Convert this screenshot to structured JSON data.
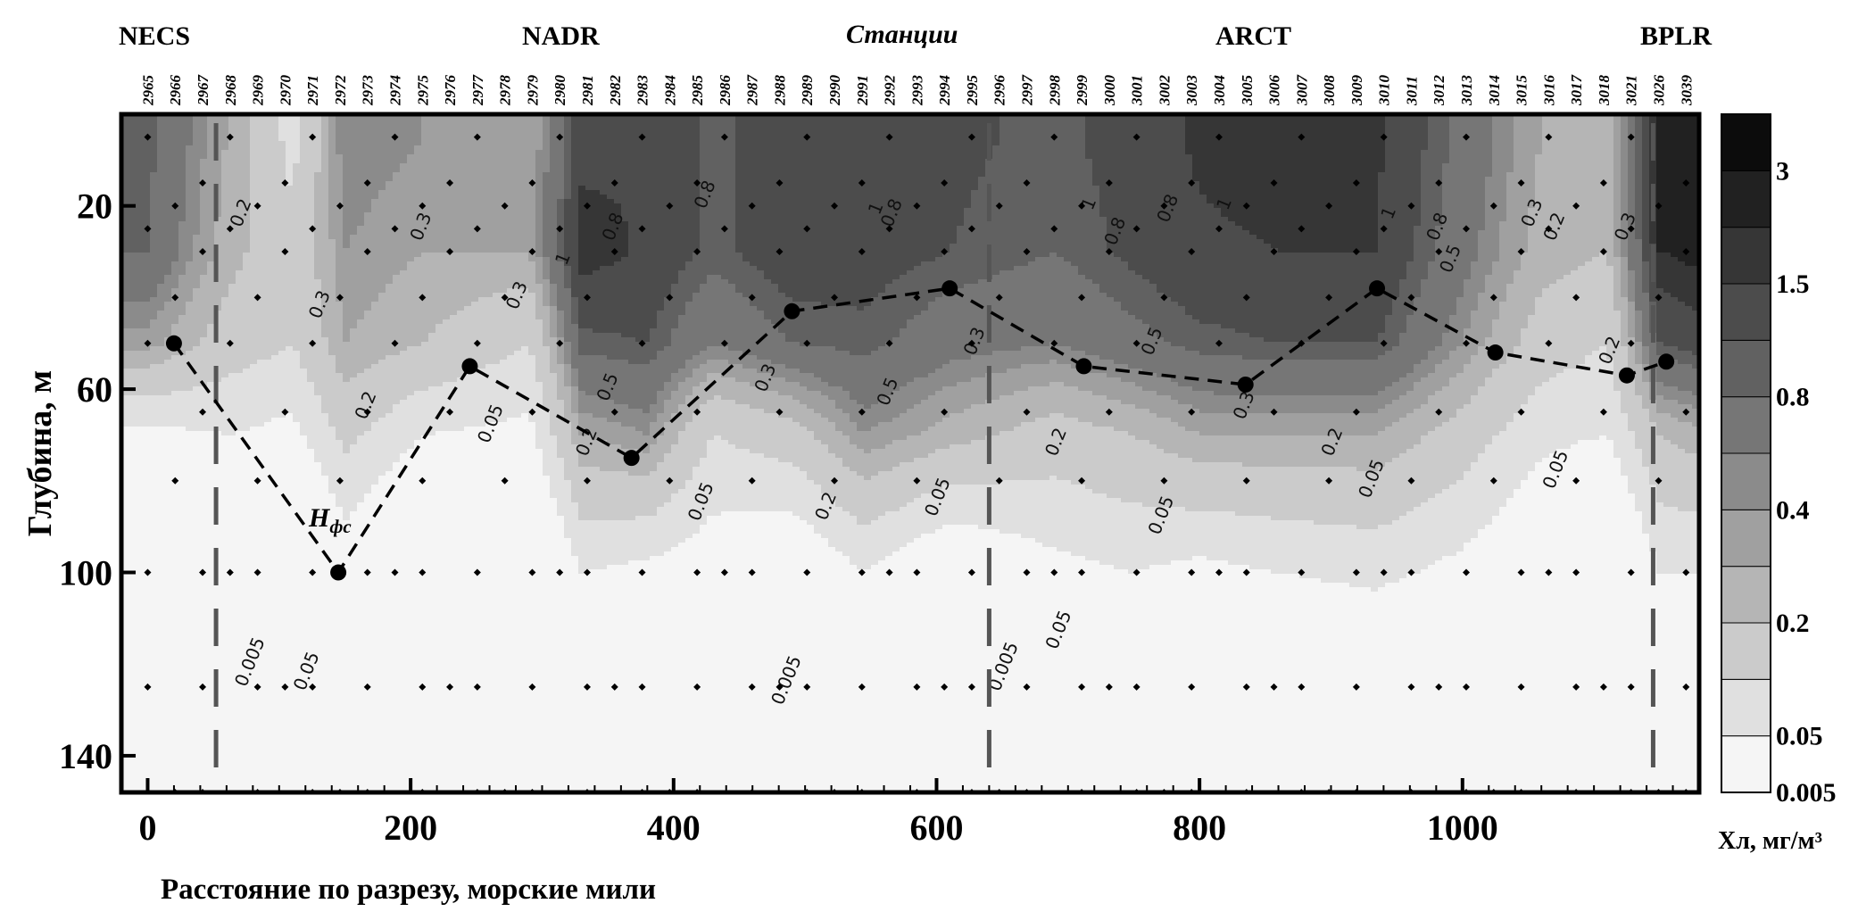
{
  "chart_data": {
    "type": "contour",
    "ylabel": "Глубина, м",
    "xlabel": "Расстояние по разрезу, морские мили",
    "colorbar_label": "Хл, мг/м³",
    "top_axis_label": "Станции",
    "x_ticks": [
      0,
      200,
      400,
      600,
      800,
      1000
    ],
    "y_ticks": [
      20,
      60,
      100,
      140
    ],
    "xlim": [
      -20,
      1180
    ],
    "ylim": [
      0,
      148
    ],
    "regions": [
      {
        "name": "NECS",
        "x": 0
      },
      {
        "name": "NADR",
        "x": 325
      },
      {
        "name": "ARCT",
        "x": 855
      },
      {
        "name": "BPLR",
        "x": 1150
      }
    ],
    "boundaries_x": [
      52,
      640,
      1145
    ],
    "stations": [
      "2965",
      "2966",
      "2967",
      "2968",
      "2969",
      "2970",
      "2971",
      "2972",
      "2973",
      "2974",
      "2975",
      "2976",
      "2977",
      "2978",
      "2979",
      "2980",
      "2981",
      "2982",
      "2983",
      "2984",
      "2985",
      "2986",
      "2987",
      "2988",
      "2989",
      "2990",
      "2991",
      "2992",
      "2993",
      "2994",
      "2995",
      "2996",
      "2997",
      "2998",
      "2999",
      "3000",
      "3001",
      "3002",
      "3003",
      "3004",
      "3005",
      "3006",
      "3007",
      "3008",
      "3009",
      "3010",
      "3011",
      "3012",
      "3013",
      "3014",
      "3015",
      "3016",
      "3017",
      "3018",
      "3021",
      "3026",
      "3039"
    ],
    "colorbar_levels": [
      0.005,
      0.05,
      0.1,
      0.2,
      0.3,
      0.4,
      0.5,
      0.8,
      1,
      1.5,
      2,
      3,
      4
    ],
    "colorbar_tick_labels": [
      {
        "value": 0.005,
        "label": "0.005"
      },
      {
        "value": 0.05,
        "label": "0.05"
      },
      {
        "value": 0.2,
        "label": "0.2"
      },
      {
        "value": 0.4,
        "label": "0.4"
      },
      {
        "value": 0.8,
        "label": "0.8"
      },
      {
        "value": 1.5,
        "label": "1.5"
      },
      {
        "value": 3,
        "label": "3"
      }
    ],
    "photic_depth_label": "Hфс",
    "photic_depth_points": [
      {
        "x": 20,
        "depth": 50
      },
      {
        "x": 145,
        "depth": 100
      },
      {
        "x": 245,
        "depth": 55
      },
      {
        "x": 368,
        "depth": 75
      },
      {
        "x": 490,
        "depth": 43
      },
      {
        "x": 610,
        "depth": 38
      },
      {
        "x": 712,
        "depth": 55
      },
      {
        "x": 835,
        "depth": 59
      },
      {
        "x": 935,
        "depth": 38
      },
      {
        "x": 1025,
        "depth": 52
      },
      {
        "x": 1125,
        "depth": 57
      },
      {
        "x": 1155,
        "depth": 54
      }
    ],
    "chlorophyll_profiles": [
      {
        "x": 0,
        "levels": [
          0.9,
          0.8,
          0.35,
          0.04,
          0.01,
          0.006
        ]
      },
      {
        "x": 60,
        "levels": [
          0.3,
          0.25,
          0.15,
          0.05,
          0.01,
          0.005
        ]
      },
      {
        "x": 110,
        "levels": [
          0.08,
          0.12,
          0.1,
          0.04,
          0.008,
          0.005
        ]
      },
      {
        "x": 150,
        "levels": [
          0.5,
          0.4,
          0.3,
          0.12,
          0.03,
          0.005
        ]
      },
      {
        "x": 210,
        "levels": [
          0.4,
          0.3,
          0.2,
          0.05,
          0.01,
          0.006
        ]
      },
      {
        "x": 290,
        "levels": [
          0.3,
          0.3,
          0.1,
          0.04,
          0.01,
          0.005
        ]
      },
      {
        "x": 330,
        "levels": [
          1.3,
          1.8,
          0.9,
          0.3,
          0.05,
          0.006
        ]
      },
      {
        "x": 380,
        "levels": [
          1.5,
          1.4,
          1.0,
          0.4,
          0.04,
          0.006
        ]
      },
      {
        "x": 430,
        "levels": [
          0.9,
          0.9,
          0.5,
          0.1,
          0.03,
          0.005
        ]
      },
      {
        "x": 490,
        "levels": [
          1.4,
          1.3,
          0.8,
          0.15,
          0.02,
          0.003
        ]
      },
      {
        "x": 545,
        "levels": [
          1.5,
          1.2,
          0.9,
          0.4,
          0.05,
          0.005
        ]
      },
      {
        "x": 610,
        "levels": [
          1.1,
          1.0,
          0.6,
          0.25,
          0.02,
          0.003
        ]
      },
      {
        "x": 690,
        "levels": [
          0.9,
          0.8,
          0.5,
          0.15,
          0.04,
          0.005
        ]
      },
      {
        "x": 750,
        "levels": [
          1.2,
          1.1,
          0.7,
          0.2,
          0.05,
          0.006
        ]
      },
      {
        "x": 800,
        "levels": [
          1.6,
          1.4,
          0.9,
          0.3,
          0.04,
          0.006
        ]
      },
      {
        "x": 860,
        "levels": [
          1.8,
          1.5,
          1.0,
          0.3,
          0.05,
          0.006
        ]
      },
      {
        "x": 935,
        "levels": [
          1.6,
          1.5,
          1.0,
          0.3,
          0.06,
          0.007
        ]
      },
      {
        "x": 1000,
        "levels": [
          0.7,
          0.6,
          0.4,
          0.15,
          0.04,
          0.006
        ]
      },
      {
        "x": 1060,
        "levels": [
          0.3,
          0.25,
          0.15,
          0.06,
          0.02,
          0.006
        ]
      },
      {
        "x": 1110,
        "levels": [
          0.2,
          0.2,
          0.1,
          0.05,
          0.01,
          0.005
        ]
      },
      {
        "x": 1150,
        "levels": [
          2.5,
          2.0,
          1.0,
          0.2,
          0.05,
          0.01
        ]
      },
      {
        "x": 1175,
        "levels": [
          3.0,
          2.2,
          1.2,
          0.25,
          0.05,
          0.01
        ]
      }
    ],
    "profile_depths": [
      5,
      30,
      50,
      70,
      100,
      145
    ],
    "contour_labels": [
      {
        "text": "0.2",
        "x": 75,
        "depth": 22
      },
      {
        "text": "0.3",
        "x": 212,
        "depth": 25
      },
      {
        "text": "0.3",
        "x": 135,
        "depth": 42
      },
      {
        "text": "0.2",
        "x": 170,
        "depth": 64
      },
      {
        "text": "0.05",
        "x": 265,
        "depth": 68
      },
      {
        "text": "0.3",
        "x": 285,
        "depth": 40
      },
      {
        "text": "1",
        "x": 320,
        "depth": 32
      },
      {
        "text": "0.8",
        "x": 358,
        "depth": 25
      },
      {
        "text": "0.8",
        "x": 428,
        "depth": 18
      },
      {
        "text": "0.5",
        "x": 354,
        "depth": 60
      },
      {
        "text": "0.2",
        "x": 338,
        "depth": 72
      },
      {
        "text": "0.05",
        "x": 425,
        "depth": 85
      },
      {
        "text": "0.3",
        "x": 474,
        "depth": 58
      },
      {
        "text": "1",
        "x": 558,
        "depth": 21
      },
      {
        "text": "0.8",
        "x": 570,
        "depth": 22
      },
      {
        "text": "0.5",
        "x": 567,
        "depth": 61
      },
      {
        "text": "0.2",
        "x": 520,
        "depth": 86
      },
      {
        "text": "0.05",
        "x": 605,
        "depth": 84
      },
      {
        "text": "0.3",
        "x": 633,
        "depth": 50
      },
      {
        "text": "0.2",
        "x": 695,
        "depth": 72
      },
      {
        "text": "1",
        "x": 720,
        "depth": 20
      },
      {
        "text": "0.8",
        "x": 740,
        "depth": 26
      },
      {
        "text": "0.8",
        "x": 780,
        "depth": 21
      },
      {
        "text": "1",
        "x": 823,
        "depth": 20
      },
      {
        "text": "0.5",
        "x": 768,
        "depth": 50
      },
      {
        "text": "0.3",
        "x": 838,
        "depth": 64
      },
      {
        "text": "0.05",
        "x": 775,
        "depth": 88
      },
      {
        "text": "0.2",
        "x": 905,
        "depth": 72
      },
      {
        "text": "0.05",
        "x": 935,
        "depth": 80
      },
      {
        "text": "1",
        "x": 948,
        "depth": 22
      },
      {
        "text": "0.8",
        "x": 985,
        "depth": 25
      },
      {
        "text": "0.5",
        "x": 995,
        "depth": 32
      },
      {
        "text": "0.3",
        "x": 1057,
        "depth": 22
      },
      {
        "text": "0.2",
        "x": 1074,
        "depth": 25
      },
      {
        "text": "0.3",
        "x": 1128,
        "depth": 25
      },
      {
        "text": "0.2",
        "x": 1116,
        "depth": 52
      },
      {
        "text": "0.05",
        "x": 1075,
        "depth": 78
      },
      {
        "text": "0.005",
        "x": 82,
        "depth": 120
      },
      {
        "text": "0.05",
        "x": 125,
        "depth": 122
      },
      {
        "text": "0.005",
        "x": 490,
        "depth": 124
      },
      {
        "text": "0.005",
        "x": 655,
        "depth": 121
      },
      {
        "text": "0.05",
        "x": 697,
        "depth": 113
      }
    ]
  }
}
